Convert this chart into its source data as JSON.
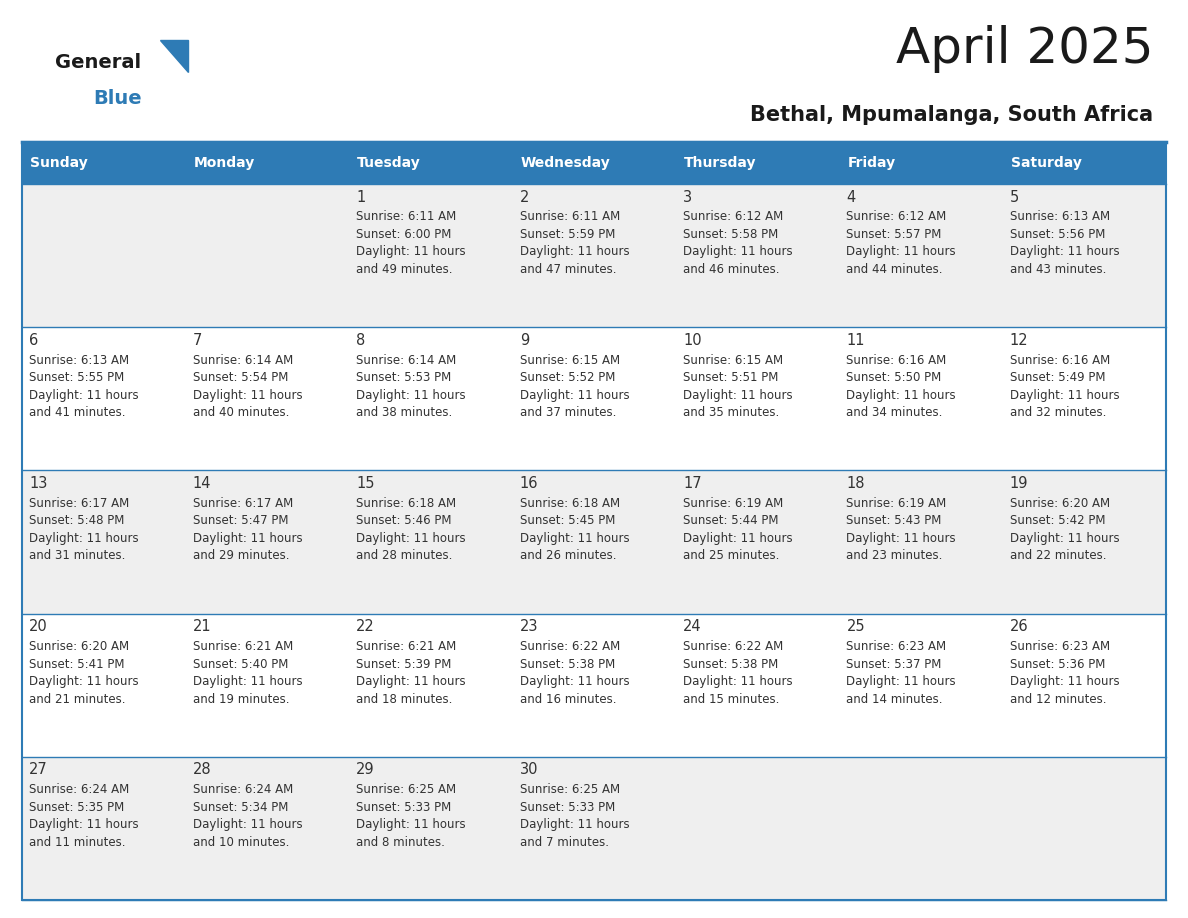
{
  "title": "April 2025",
  "subtitle": "Bethal, Mpumalanga, South Africa",
  "header_bg": "#2E7BB5",
  "header_text_color": "#FFFFFF",
  "row_bg_odd": "#EFEFEF",
  "row_bg_even": "#FFFFFF",
  "border_color": "#2E7BB5",
  "text_color": "#333333",
  "days_of_week": [
    "Sunday",
    "Monday",
    "Tuesday",
    "Wednesday",
    "Thursday",
    "Friday",
    "Saturday"
  ],
  "calendar_data": [
    [
      {
        "day": "",
        "sunrise": "",
        "sunset": "",
        "daylight": ""
      },
      {
        "day": "",
        "sunrise": "",
        "sunset": "",
        "daylight": ""
      },
      {
        "day": "1",
        "sunrise": "6:11 AM",
        "sunset": "6:00 PM",
        "daylight": "11 hours and 49 minutes."
      },
      {
        "day": "2",
        "sunrise": "6:11 AM",
        "sunset": "5:59 PM",
        "daylight": "11 hours and 47 minutes."
      },
      {
        "day": "3",
        "sunrise": "6:12 AM",
        "sunset": "5:58 PM",
        "daylight": "11 hours and 46 minutes."
      },
      {
        "day": "4",
        "sunrise": "6:12 AM",
        "sunset": "5:57 PM",
        "daylight": "11 hours and 44 minutes."
      },
      {
        "day": "5",
        "sunrise": "6:13 AM",
        "sunset": "5:56 PM",
        "daylight": "11 hours and 43 minutes."
      }
    ],
    [
      {
        "day": "6",
        "sunrise": "6:13 AM",
        "sunset": "5:55 PM",
        "daylight": "11 hours and 41 minutes."
      },
      {
        "day": "7",
        "sunrise": "6:14 AM",
        "sunset": "5:54 PM",
        "daylight": "11 hours and 40 minutes."
      },
      {
        "day": "8",
        "sunrise": "6:14 AM",
        "sunset": "5:53 PM",
        "daylight": "11 hours and 38 minutes."
      },
      {
        "day": "9",
        "sunrise": "6:15 AM",
        "sunset": "5:52 PM",
        "daylight": "11 hours and 37 minutes."
      },
      {
        "day": "10",
        "sunrise": "6:15 AM",
        "sunset": "5:51 PM",
        "daylight": "11 hours and 35 minutes."
      },
      {
        "day": "11",
        "sunrise": "6:16 AM",
        "sunset": "5:50 PM",
        "daylight": "11 hours and 34 minutes."
      },
      {
        "day": "12",
        "sunrise": "6:16 AM",
        "sunset": "5:49 PM",
        "daylight": "11 hours and 32 minutes."
      }
    ],
    [
      {
        "day": "13",
        "sunrise": "6:17 AM",
        "sunset": "5:48 PM",
        "daylight": "11 hours and 31 minutes."
      },
      {
        "day": "14",
        "sunrise": "6:17 AM",
        "sunset": "5:47 PM",
        "daylight": "11 hours and 29 minutes."
      },
      {
        "day": "15",
        "sunrise": "6:18 AM",
        "sunset": "5:46 PM",
        "daylight": "11 hours and 28 minutes."
      },
      {
        "day": "16",
        "sunrise": "6:18 AM",
        "sunset": "5:45 PM",
        "daylight": "11 hours and 26 minutes."
      },
      {
        "day": "17",
        "sunrise": "6:19 AM",
        "sunset": "5:44 PM",
        "daylight": "11 hours and 25 minutes."
      },
      {
        "day": "18",
        "sunrise": "6:19 AM",
        "sunset": "5:43 PM",
        "daylight": "11 hours and 23 minutes."
      },
      {
        "day": "19",
        "sunrise": "6:20 AM",
        "sunset": "5:42 PM",
        "daylight": "11 hours and 22 minutes."
      }
    ],
    [
      {
        "day": "20",
        "sunrise": "6:20 AM",
        "sunset": "5:41 PM",
        "daylight": "11 hours and 21 minutes."
      },
      {
        "day": "21",
        "sunrise": "6:21 AM",
        "sunset": "5:40 PM",
        "daylight": "11 hours and 19 minutes."
      },
      {
        "day": "22",
        "sunrise": "6:21 AM",
        "sunset": "5:39 PM",
        "daylight": "11 hours and 18 minutes."
      },
      {
        "day": "23",
        "sunrise": "6:22 AM",
        "sunset": "5:38 PM",
        "daylight": "11 hours and 16 minutes."
      },
      {
        "day": "24",
        "sunrise": "6:22 AM",
        "sunset": "5:38 PM",
        "daylight": "11 hours and 15 minutes."
      },
      {
        "day": "25",
        "sunrise": "6:23 AM",
        "sunset": "5:37 PM",
        "daylight": "11 hours and 14 minutes."
      },
      {
        "day": "26",
        "sunrise": "6:23 AM",
        "sunset": "5:36 PM",
        "daylight": "11 hours and 12 minutes."
      }
    ],
    [
      {
        "day": "27",
        "sunrise": "6:24 AM",
        "sunset": "5:35 PM",
        "daylight": "11 hours and 11 minutes."
      },
      {
        "day": "28",
        "sunrise": "6:24 AM",
        "sunset": "5:34 PM",
        "daylight": "11 hours and 10 minutes."
      },
      {
        "day": "29",
        "sunrise": "6:25 AM",
        "sunset": "5:33 PM",
        "daylight": "11 hours and 8 minutes."
      },
      {
        "day": "30",
        "sunrise": "6:25 AM",
        "sunset": "5:33 PM",
        "daylight": "11 hours and 7 minutes."
      },
      {
        "day": "",
        "sunrise": "",
        "sunset": "",
        "daylight": ""
      },
      {
        "day": "",
        "sunrise": "",
        "sunset": "",
        "daylight": ""
      },
      {
        "day": "",
        "sunrise": "",
        "sunset": "",
        "daylight": ""
      }
    ]
  ],
  "fig_width": 11.88,
  "fig_height": 9.18,
  "dpi": 100
}
